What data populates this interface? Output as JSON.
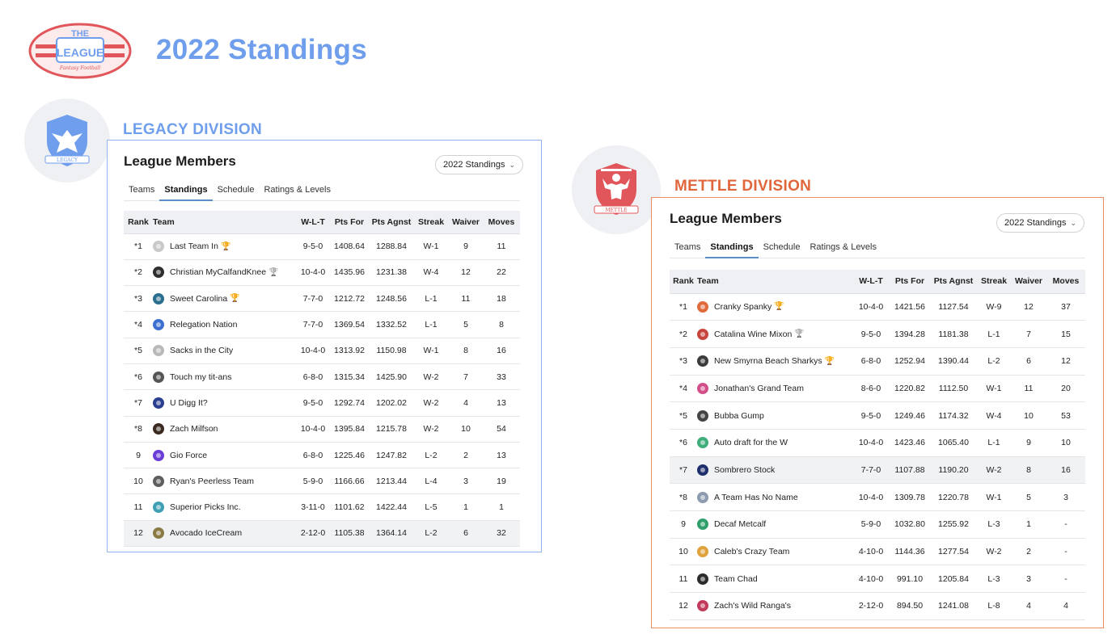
{
  "page": {
    "title": "2022 Standings",
    "logo_text": "THE LEAGUE",
    "logo_subtext": "Fantasy Football"
  },
  "colors": {
    "legacy_accent": "#6f9eec",
    "mettle_accent": "#e0663b"
  },
  "legacy": {
    "division_title": "LEGACY DIVISION",
    "badge_text": "LEGACY",
    "members_title": "League Members",
    "dropdown_label": "2022 Standings",
    "tabs": [
      "Teams",
      "Standings",
      "Schedule",
      "Ratings & Levels"
    ],
    "active_tab": "Standings",
    "columns": [
      "Rank",
      "Team",
      "W-L-T",
      "Pts For",
      "Pts Agnst",
      "Streak",
      "Waiver",
      "Moves"
    ],
    "rows": [
      {
        "rank": "*1",
        "team": "Last Team In",
        "trophy": "gold",
        "icon_color": "#c9c9c9",
        "wlt": "9-5-0",
        "pts_for": "1408.64",
        "pts_agnst": "1288.84",
        "streak": "W-1",
        "waiver": "9",
        "moves": "11"
      },
      {
        "rank": "*2",
        "team": "Christian MyCalfandKnee",
        "trophy": "silver",
        "icon_color": "#2f2f2f",
        "wlt": "10-4-0",
        "pts_for": "1435.96",
        "pts_agnst": "1231.38",
        "streak": "W-4",
        "waiver": "12",
        "moves": "22"
      },
      {
        "rank": "*3",
        "team": "Sweet Carolina",
        "trophy": "gold",
        "icon_color": "#2a6f8f",
        "wlt": "7-7-0",
        "pts_for": "1212.72",
        "pts_agnst": "1248.56",
        "streak": "L-1",
        "waiver": "11",
        "moves": "18"
      },
      {
        "rank": "*4",
        "team": "Relegation Nation",
        "trophy": "",
        "icon_color": "#3d6fd1",
        "wlt": "7-7-0",
        "pts_for": "1369.54",
        "pts_agnst": "1332.52",
        "streak": "L-1",
        "waiver": "5",
        "moves": "8"
      },
      {
        "rank": "*5",
        "team": "Sacks in the City",
        "trophy": "",
        "icon_color": "#b9b9b9",
        "wlt": "10-4-0",
        "pts_for": "1313.92",
        "pts_agnst": "1150.98",
        "streak": "W-1",
        "waiver": "8",
        "moves": "16"
      },
      {
        "rank": "*6",
        "team": "Touch my tit-ans",
        "trophy": "",
        "icon_color": "#555555",
        "wlt": "6-8-0",
        "pts_for": "1315.34",
        "pts_agnst": "1425.90",
        "streak": "W-2",
        "waiver": "7",
        "moves": "33"
      },
      {
        "rank": "*7",
        "team": "U Digg It?",
        "trophy": "",
        "icon_color": "#2b3e8f",
        "wlt": "9-5-0",
        "pts_for": "1292.74",
        "pts_agnst": "1202.02",
        "streak": "W-2",
        "waiver": "4",
        "moves": "13"
      },
      {
        "rank": "*8",
        "team": "Zach Milfson",
        "trophy": "",
        "icon_color": "#3a2a20",
        "wlt": "10-4-0",
        "pts_for": "1395.84",
        "pts_agnst": "1215.78",
        "streak": "W-2",
        "waiver": "10",
        "moves": "54"
      },
      {
        "rank": "9",
        "team": "Gio Force",
        "trophy": "",
        "icon_color": "#6b3fd6",
        "wlt": "6-8-0",
        "pts_for": "1225.46",
        "pts_agnst": "1247.82",
        "streak": "L-2",
        "waiver": "2",
        "moves": "13"
      },
      {
        "rank": "10",
        "team": "Ryan's Peerless Team",
        "trophy": "",
        "icon_color": "#5e5e5e",
        "wlt": "5-9-0",
        "pts_for": "1166.66",
        "pts_agnst": "1213.44",
        "streak": "L-4",
        "waiver": "3",
        "moves": "19"
      },
      {
        "rank": "11",
        "team": "Superior Picks Inc.",
        "trophy": "",
        "icon_color": "#3fa0b5",
        "wlt": "3-11-0",
        "pts_for": "1101.62",
        "pts_agnst": "1422.44",
        "streak": "L-5",
        "waiver": "1",
        "moves": "1"
      },
      {
        "rank": "12",
        "team": "Avocado IceCream",
        "trophy": "",
        "icon_color": "#8c7a45",
        "wlt": "2-12-0",
        "pts_for": "1105.38",
        "pts_agnst": "1364.14",
        "streak": "L-2",
        "waiver": "6",
        "moves": "32"
      }
    ]
  },
  "mettle": {
    "division_title": "METTLE DIVISION",
    "badge_text": "METTLE",
    "members_title": "League Members",
    "dropdown_label": "2022 Standings",
    "tabs": [
      "Teams",
      "Standings",
      "Schedule",
      "Ratings & Levels"
    ],
    "active_tab": "Standings",
    "columns": [
      "Rank",
      "Team",
      "W-L-T",
      "Pts For",
      "Pts Agnst",
      "Streak",
      "Waiver",
      "Moves"
    ],
    "rows": [
      {
        "rank": "*1",
        "team": "Cranky Spanky",
        "trophy": "gold",
        "icon_color": "#e06a3c",
        "wlt": "10-4-0",
        "pts_for": "1421.56",
        "pts_agnst": "1127.54",
        "streak": "W-9",
        "waiver": "12",
        "moves": "37"
      },
      {
        "rank": "*2",
        "team": "Catalina Wine Mixon",
        "trophy": "silver",
        "icon_color": "#c8453d",
        "wlt": "9-5-0",
        "pts_for": "1394.28",
        "pts_agnst": "1181.38",
        "streak": "L-1",
        "waiver": "7",
        "moves": "15"
      },
      {
        "rank": "*3",
        "team": "New Smyrna Beach Sharkys",
        "trophy": "gold",
        "icon_color": "#3c3c3c",
        "wlt": "6-8-0",
        "pts_for": "1252.94",
        "pts_agnst": "1390.44",
        "streak": "L-2",
        "waiver": "6",
        "moves": "12"
      },
      {
        "rank": "*4",
        "team": "Jonathan's Grand Team",
        "trophy": "",
        "icon_color": "#d24f8a",
        "wlt": "8-6-0",
        "pts_for": "1220.82",
        "pts_agnst": "1112.50",
        "streak": "W-1",
        "waiver": "11",
        "moves": "20"
      },
      {
        "rank": "*5",
        "team": "Bubba Gump",
        "trophy": "",
        "icon_color": "#444444",
        "wlt": "9-5-0",
        "pts_for": "1249.46",
        "pts_agnst": "1174.32",
        "streak": "W-4",
        "waiver": "10",
        "moves": "53"
      },
      {
        "rank": "*6",
        "team": "Auto draft for the W",
        "trophy": "",
        "icon_color": "#3fae7a",
        "wlt": "10-4-0",
        "pts_for": "1423.46",
        "pts_agnst": "1065.40",
        "streak": "L-1",
        "waiver": "9",
        "moves": "10"
      },
      {
        "rank": "*7",
        "team": "Sombrero Stock",
        "trophy": "",
        "icon_color": "#1e2f6b",
        "wlt": "7-7-0",
        "pts_for": "1107.88",
        "pts_agnst": "1190.20",
        "streak": "W-2",
        "waiver": "8",
        "moves": "16",
        "shaded": true
      },
      {
        "rank": "*8",
        "team": "A Team Has No Name",
        "trophy": "",
        "icon_color": "#8c9bb0",
        "wlt": "10-4-0",
        "pts_for": "1309.78",
        "pts_agnst": "1220.78",
        "streak": "W-1",
        "waiver": "5",
        "moves": "3"
      },
      {
        "rank": "9",
        "team": "Decaf Metcalf",
        "trophy": "",
        "icon_color": "#2e9e6a",
        "wlt": "5-9-0",
        "pts_for": "1032.80",
        "pts_agnst": "1255.92",
        "streak": "L-3",
        "waiver": "1",
        "moves": "-"
      },
      {
        "rank": "10",
        "team": "Caleb's Crazy Team",
        "trophy": "",
        "icon_color": "#e0a23a",
        "wlt": "4-10-0",
        "pts_for": "1144.36",
        "pts_agnst": "1277.54",
        "streak": "W-2",
        "waiver": "2",
        "moves": "-"
      },
      {
        "rank": "11",
        "team": "Team Chad",
        "trophy": "",
        "icon_color": "#2c2c2c",
        "wlt": "4-10-0",
        "pts_for": "991.10",
        "pts_agnst": "1205.84",
        "streak": "L-3",
        "waiver": "3",
        "moves": "-"
      },
      {
        "rank": "12",
        "team": "Zach's Wild Ranga's",
        "trophy": "",
        "icon_color": "#c23b5a",
        "wlt": "2-12-0",
        "pts_for": "894.50",
        "pts_agnst": "1241.08",
        "streak": "L-8",
        "waiver": "4",
        "moves": "4"
      }
    ]
  }
}
